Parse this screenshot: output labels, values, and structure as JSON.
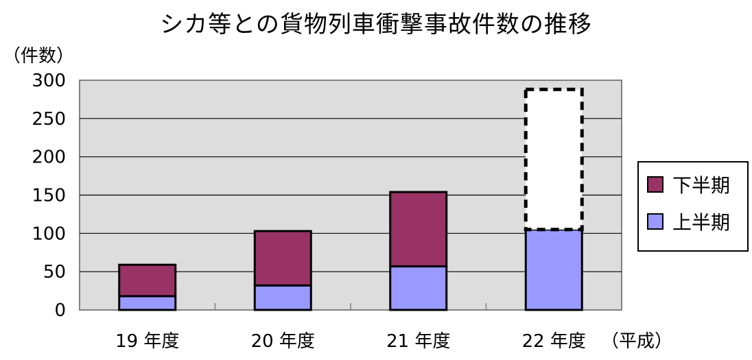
{
  "chart_data": {
    "type": "bar",
    "stacked": true,
    "title": "シカ等との貨物列車衝撃事故件数の推移",
    "ylabel": "（件数）",
    "x_unit": "（平成）",
    "categories": [
      "19 年度",
      "20 年度",
      "21 年度",
      "22 年度"
    ],
    "series": [
      {
        "name": "上半期",
        "values": [
          18,
          32,
          57,
          105
        ],
        "color": "#9999FF"
      },
      {
        "name": "下半期",
        "values": [
          41,
          71,
          97,
          null
        ],
        "color": "#993366"
      }
    ],
    "projection": {
      "category": "22 年度",
      "from": 105,
      "to": 288,
      "style": "dashed-empty"
    },
    "yticks": [
      "0",
      "50",
      "100",
      "150",
      "200",
      "250",
      "300"
    ],
    "ylim": [
      0,
      300
    ],
    "grid": true,
    "plot_background": "#DDDDDD",
    "legend": {
      "position": "right",
      "order": [
        "下半期",
        "上半期"
      ]
    }
  }
}
